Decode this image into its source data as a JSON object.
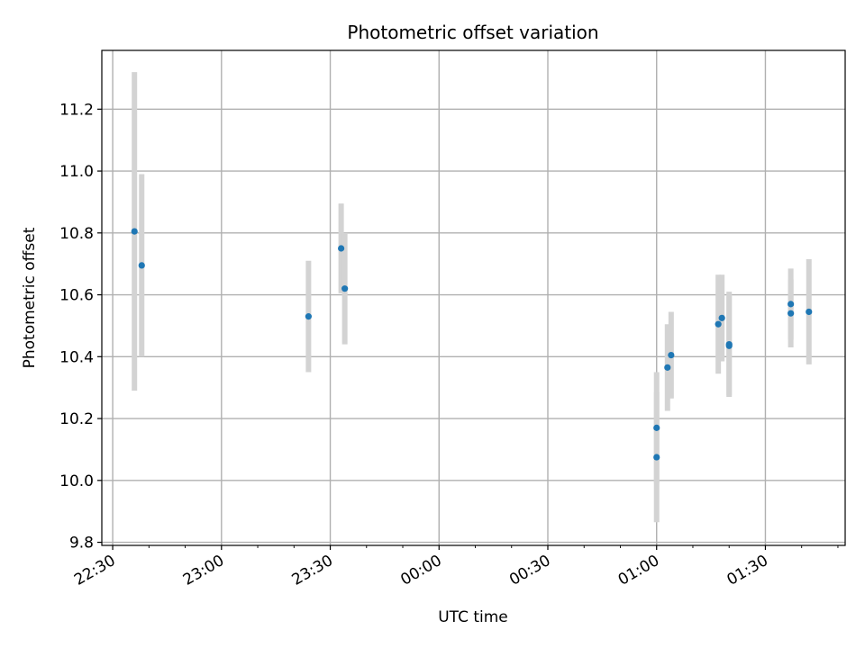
{
  "chart_data": {
    "type": "scatter",
    "title": "Photometric offset variation",
    "xlabel": "UTC time",
    "ylabel": "Photometric offset",
    "x_unit": "UTC time",
    "xlim": [
      "22:27",
      "01:52"
    ],
    "ylim": [
      9.79,
      11.39
    ],
    "grid": true,
    "x_ticks": [
      "22:30",
      "23:00",
      "23:30",
      "00:00",
      "00:30",
      "01:00",
      "01:30"
    ],
    "y_ticks": [
      "9.8",
      "10.0",
      "10.2",
      "10.4",
      "10.6",
      "10.8",
      "11.0",
      "11.2"
    ],
    "colors": {
      "point": "#1f77b4",
      "errorbar": "#d3d3d3",
      "grid": "#b0b0b0"
    },
    "points": [
      {
        "x": "22:36",
        "y": 10.805,
        "err": 0.515
      },
      {
        "x": "22:38",
        "y": 10.695,
        "err": 0.295
      },
      {
        "x": "23:24",
        "y": 10.53,
        "err": 0.18
      },
      {
        "x": "23:33",
        "y": 10.75,
        "err": 0.145
      },
      {
        "x": "23:34",
        "y": 10.62,
        "err": 0.18
      },
      {
        "x": "01:00",
        "y": 10.17,
        "err": 0.18
      },
      {
        "x": "01:00",
        "y": 10.075,
        "err": 0.21
      },
      {
        "x": "01:03",
        "y": 10.365,
        "err": 0.14
      },
      {
        "x": "01:04",
        "y": 10.405,
        "err": 0.14
      },
      {
        "x": "01:17",
        "y": 10.505,
        "err": 0.16
      },
      {
        "x": "01:18",
        "y": 10.525,
        "err": 0.14
      },
      {
        "x": "01:20",
        "y": 10.435,
        "err": 0.16
      },
      {
        "x": "01:20",
        "y": 10.44,
        "err": 0.17
      },
      {
        "x": "01:37",
        "y": 10.54,
        "err": 0.11
      },
      {
        "x": "01:37",
        "y": 10.57,
        "err": 0.115
      },
      {
        "x": "01:42",
        "y": 10.545,
        "err": 0.17
      }
    ]
  }
}
